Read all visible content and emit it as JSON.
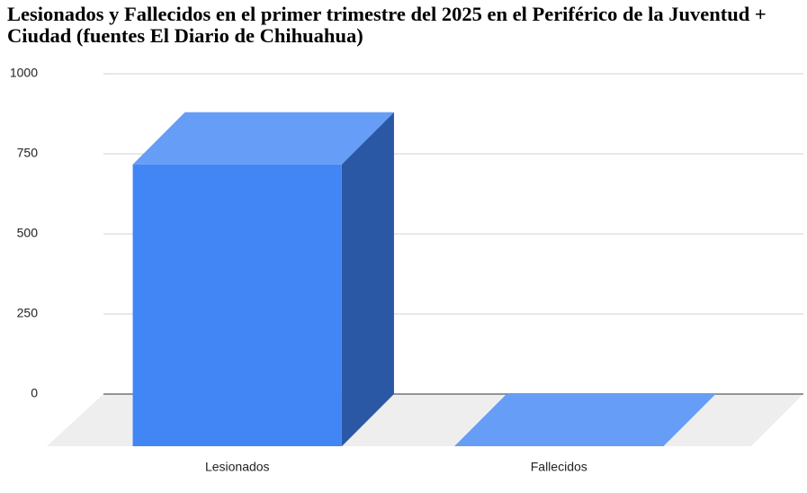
{
  "chart_data": {
    "type": "bar3d",
    "title": "Lesionados y Fallecidos en el primer trimestre del 2025 en el Periférico de la Juventud + Ciudad (fuentes El Diario de Chihuahua)",
    "categories": [
      "Lesionados",
      "Fallecidos"
    ],
    "values": [
      880,
      0
    ],
    "color": "#4285f4",
    "ylim": [
      0,
      1000
    ],
    "yticks": [
      0,
      250,
      500,
      750,
      1000
    ],
    "grid": true
  }
}
